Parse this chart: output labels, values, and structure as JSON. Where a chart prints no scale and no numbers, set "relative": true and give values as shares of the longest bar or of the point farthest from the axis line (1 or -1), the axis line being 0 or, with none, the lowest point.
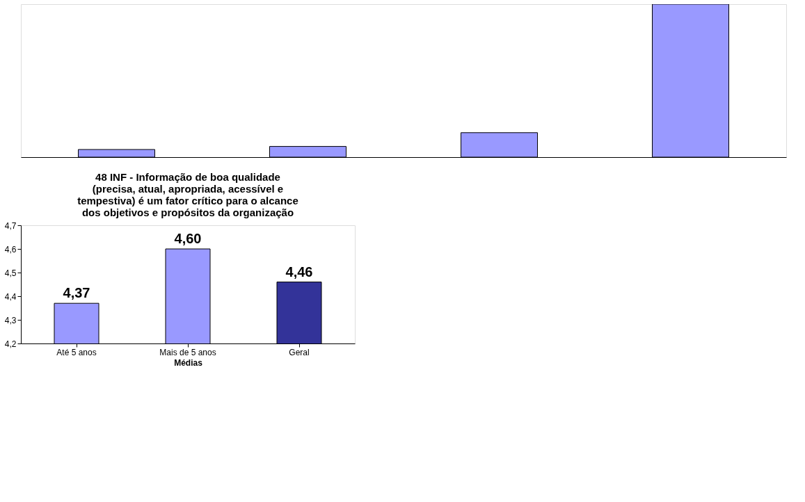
{
  "chart_data": [
    {
      "type": "bar",
      "relative": true,
      "categories": [
        null,
        null,
        null,
        null
      ],
      "values": [
        0.05,
        0.07,
        0.16,
        1
      ],
      "colors": [
        "#9999ff",
        "#9999ff",
        "#9999ff",
        "#9999ff"
      ]
    },
    {
      "type": "bar",
      "title": "48 INF - Informação de boa qualidade\n(precisa, atual, apropriada, acessível e\ntempestiva) é um fator crítico para o alcance\ndos objetivos e propósitos da organização",
      "xlabel": "Médias",
      "categories": [
        "Até 5 anos",
        "Mais de 5 anos",
        "Geral"
      ],
      "values": [
        4.37,
        4.6,
        4.46
      ],
      "colors": [
        "#9999ff",
        "#9999ff",
        "#333399"
      ],
      "value_labels": [
        "4,37",
        "4,60",
        "4,46"
      ],
      "ylim": [
        4.2,
        4.7
      ],
      "yticks": [
        {
          "value": 4.2,
          "label": "4,2"
        },
        {
          "value": 4.3,
          "label": "4,3"
        },
        {
          "value": 4.4,
          "label": "4,4"
        },
        {
          "value": 4.5,
          "label": "4,5"
        },
        {
          "value": 4.6,
          "label": "4,6"
        },
        {
          "value": 4.7,
          "label": "4,7"
        }
      ]
    }
  ]
}
